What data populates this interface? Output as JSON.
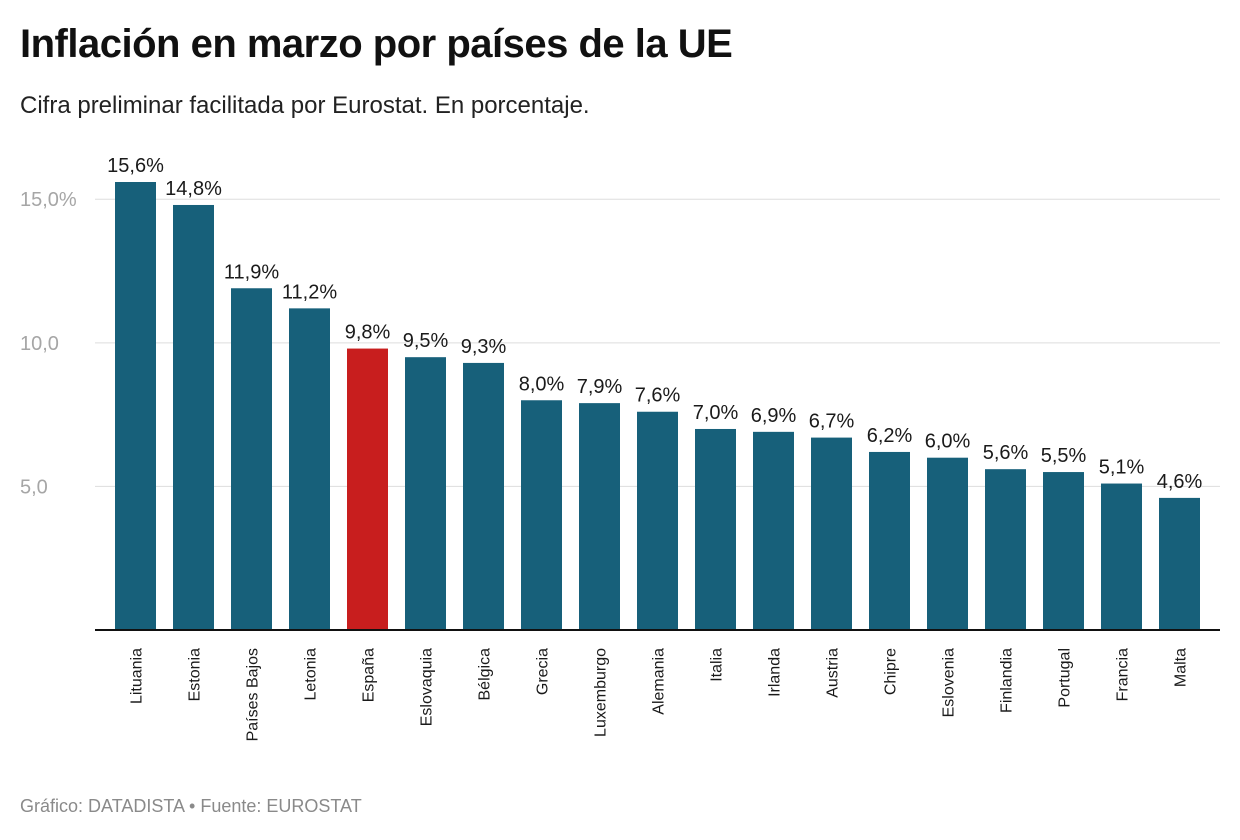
{
  "header": {
    "title": "Inflación en marzo por países de la UE",
    "subtitle": "Cifra preliminar facilitada por Eurostat. En porcentaje."
  },
  "footer": {
    "source": "Gráfico: DATADISTA • Fuente: EUROSTAT"
  },
  "colors": {
    "bar": "#17607a",
    "highlight": "#c81e1e",
    "grid": "#dddddd",
    "baseline": "#111111"
  },
  "chart_data": {
    "type": "bar",
    "title": "Inflación en marzo por países de la UE",
    "subtitle": "Cifra preliminar facilitada por Eurostat. En porcentaje.",
    "xlabel": "",
    "ylabel": "",
    "ylim": [
      0,
      15.6
    ],
    "yticks": [
      {
        "value": 5,
        "label": "5,0"
      },
      {
        "value": 10,
        "label": "10,0"
      },
      {
        "value": 15,
        "label": "15,0%"
      }
    ],
    "grid": true,
    "highlight": "España",
    "categories": [
      "Lituania",
      "Estonia",
      "Países Bajos",
      "Letonia",
      "España",
      "Eslovaquia",
      "Bélgica",
      "Grecia",
      "Luxemburgo",
      "Alemania",
      "Italia",
      "Irlanda",
      "Austria",
      "Chipre",
      "Eslovenia",
      "Finlandia",
      "Portugal",
      "Francia",
      "Malta"
    ],
    "values": [
      15.6,
      14.8,
      11.9,
      11.2,
      9.8,
      9.5,
      9.3,
      8.0,
      7.9,
      7.6,
      7.0,
      6.9,
      6.7,
      6.2,
      6.0,
      5.6,
      5.5,
      5.1,
      4.6
    ],
    "data_labels": [
      "15,6%",
      "14,8%",
      "11,9%",
      "11,2%",
      "9,8%",
      "9,5%",
      "9,3%",
      "8,0%",
      "7,9%",
      "7,6%",
      "7,0%",
      "6,9%",
      "6,7%",
      "6,2%",
      "6,0%",
      "5,6%",
      "5,5%",
      "5,1%",
      "4,6%"
    ]
  }
}
